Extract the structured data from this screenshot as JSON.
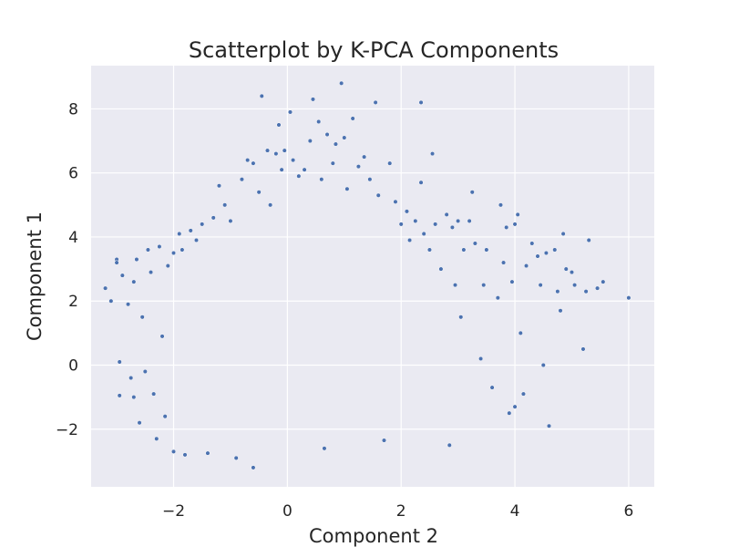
{
  "chart_data": {
    "type": "scatter",
    "title": "Scatterplot by K-PCA Components",
    "xlabel": "Component 2",
    "ylabel": "Component 1",
    "xlim": [
      -3.45,
      6.45
    ],
    "ylim": [
      -3.8,
      9.35
    ],
    "xticks": [
      -2,
      0,
      2,
      4,
      6
    ],
    "yticks": [
      -2,
      0,
      2,
      4,
      6,
      8
    ],
    "xtick_labels": [
      "−2",
      "0",
      "2",
      "4",
      "6"
    ],
    "ytick_labels": [
      "−2",
      "0",
      "2",
      "4",
      "6",
      "8"
    ],
    "grid": true,
    "background_color": "#eaeaf2",
    "point_color": "#4c72b0",
    "point_edge_color": "#ffffff",
    "series": [
      {
        "points": [
          [
            -3.2,
            2.4
          ],
          [
            -3.1,
            2.0
          ],
          [
            -3.0,
            3.3
          ],
          [
            -3.0,
            3.2
          ],
          [
            -2.95,
            0.1
          ],
          [
            -2.95,
            -0.95
          ],
          [
            -2.9,
            2.8
          ],
          [
            -2.8,
            1.9
          ],
          [
            -2.75,
            -0.4
          ],
          [
            -2.7,
            2.6
          ],
          [
            -2.7,
            -1.0
          ],
          [
            -2.65,
            3.3
          ],
          [
            -2.6,
            -1.8
          ],
          [
            -2.55,
            1.5
          ],
          [
            -2.5,
            -0.2
          ],
          [
            -2.45,
            3.6
          ],
          [
            -2.4,
            2.9
          ],
          [
            -2.35,
            -0.9
          ],
          [
            -2.3,
            -2.3
          ],
          [
            -2.25,
            3.7
          ],
          [
            -2.2,
            0.9
          ],
          [
            -2.15,
            -1.6
          ],
          [
            -2.1,
            3.1
          ],
          [
            -2.0,
            3.5
          ],
          [
            -2.0,
            -2.7
          ],
          [
            -1.9,
            4.1
          ],
          [
            -1.85,
            3.6
          ],
          [
            -1.8,
            -2.8
          ],
          [
            -1.7,
            4.2
          ],
          [
            -1.6,
            3.9
          ],
          [
            -1.5,
            4.4
          ],
          [
            -1.4,
            -2.75
          ],
          [
            -1.3,
            4.6
          ],
          [
            -1.2,
            5.6
          ],
          [
            -1.1,
            5.0
          ],
          [
            -1.0,
            4.5
          ],
          [
            -0.9,
            -2.9
          ],
          [
            -0.8,
            5.8
          ],
          [
            -0.7,
            6.4
          ],
          [
            -0.6,
            6.3
          ],
          [
            -0.6,
            -3.2
          ],
          [
            -0.5,
            5.4
          ],
          [
            -0.45,
            8.4
          ],
          [
            -0.35,
            6.7
          ],
          [
            -0.3,
            5.0
          ],
          [
            -0.2,
            6.6
          ],
          [
            -0.15,
            7.5
          ],
          [
            -0.1,
            6.1
          ],
          [
            -0.05,
            6.7
          ],
          [
            0.05,
            7.9
          ],
          [
            0.1,
            6.4
          ],
          [
            0.2,
            5.9
          ],
          [
            0.3,
            6.1
          ],
          [
            0.4,
            7.0
          ],
          [
            0.45,
            8.3
          ],
          [
            0.55,
            7.6
          ],
          [
            0.6,
            5.8
          ],
          [
            0.65,
            -2.6
          ],
          [
            0.7,
            7.2
          ],
          [
            0.8,
            6.3
          ],
          [
            0.85,
            6.9
          ],
          [
            0.95,
            8.8
          ],
          [
            1.0,
            7.1
          ],
          [
            1.05,
            5.5
          ],
          [
            1.15,
            7.7
          ],
          [
            1.25,
            6.2
          ],
          [
            1.35,
            6.5
          ],
          [
            1.45,
            5.8
          ],
          [
            1.55,
            8.2
          ],
          [
            1.6,
            5.3
          ],
          [
            1.7,
            -2.35
          ],
          [
            1.8,
            6.3
          ],
          [
            1.9,
            5.1
          ],
          [
            2.0,
            4.4
          ],
          [
            2.1,
            4.8
          ],
          [
            2.15,
            3.9
          ],
          [
            2.25,
            4.5
          ],
          [
            2.35,
            8.2
          ],
          [
            2.35,
            5.7
          ],
          [
            2.4,
            4.1
          ],
          [
            2.5,
            3.6
          ],
          [
            2.55,
            6.6
          ],
          [
            2.6,
            4.4
          ],
          [
            2.7,
            3.0
          ],
          [
            2.8,
            4.7
          ],
          [
            2.85,
            -2.5
          ],
          [
            2.9,
            4.3
          ],
          [
            2.95,
            2.5
          ],
          [
            3.0,
            4.5
          ],
          [
            3.05,
            1.5
          ],
          [
            3.1,
            3.6
          ],
          [
            3.2,
            4.5
          ],
          [
            3.25,
            5.4
          ],
          [
            3.3,
            3.8
          ],
          [
            3.4,
            0.2
          ],
          [
            3.45,
            2.5
          ],
          [
            3.5,
            3.6
          ],
          [
            3.6,
            -0.7
          ],
          [
            3.7,
            2.1
          ],
          [
            3.75,
            5.0
          ],
          [
            3.8,
            3.2
          ],
          [
            3.85,
            4.3
          ],
          [
            3.9,
            -1.5
          ],
          [
            3.95,
            2.6
          ],
          [
            4.0,
            4.4
          ],
          [
            4.0,
            -1.3
          ],
          [
            4.05,
            4.7
          ],
          [
            4.1,
            1.0
          ],
          [
            4.15,
            -0.9
          ],
          [
            4.2,
            3.1
          ],
          [
            4.3,
            3.8
          ],
          [
            4.4,
            3.4
          ],
          [
            4.45,
            2.5
          ],
          [
            4.5,
            0.0
          ],
          [
            4.55,
            3.5
          ],
          [
            4.6,
            -1.9
          ],
          [
            4.7,
            3.6
          ],
          [
            4.75,
            2.3
          ],
          [
            4.8,
            1.7
          ],
          [
            4.85,
            4.1
          ],
          [
            4.9,
            3.0
          ],
          [
            5.0,
            2.9
          ],
          [
            5.05,
            2.5
          ],
          [
            5.2,
            0.5
          ],
          [
            5.25,
            2.3
          ],
          [
            5.3,
            3.9
          ],
          [
            5.45,
            2.4
          ],
          [
            5.55,
            2.6
          ],
          [
            6.0,
            2.1
          ]
        ]
      }
    ]
  }
}
